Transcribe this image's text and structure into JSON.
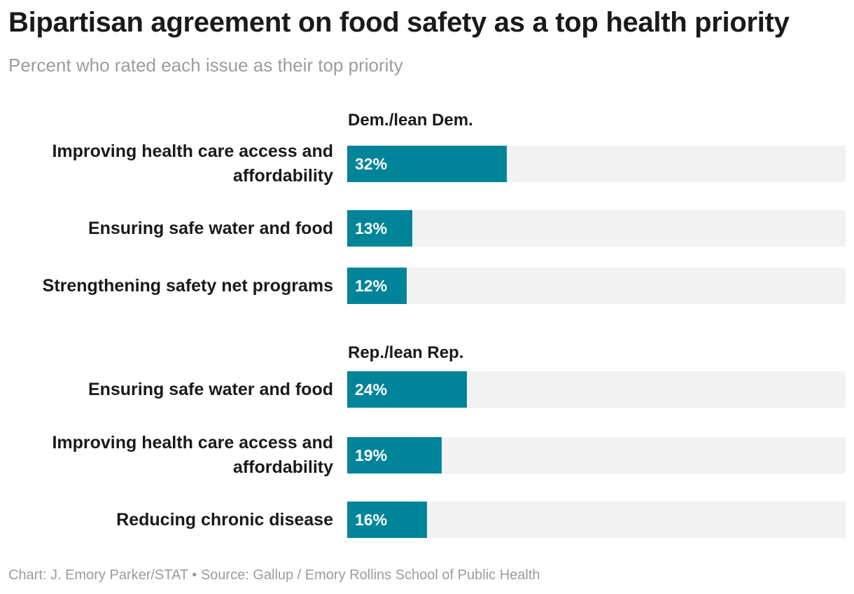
{
  "title": "Bipartisan agreement on food safety as a top health priority",
  "subtitle": "Percent who rated each issue as their top priority",
  "footer": "Chart: J. Emory Parker/STAT • Source: Gallup / Emory Rollins School of Public Health",
  "colors": {
    "bar": "#00849a",
    "track": "#f2f2f2"
  },
  "chart_data": {
    "type": "bar",
    "orientation": "horizontal",
    "xlim": [
      0,
      100
    ],
    "unit": "%",
    "groups": [
      {
        "name": "Dem./lean Dem.",
        "categories": [
          "Improving health care access and affordability",
          "Ensuring safe water and food",
          "Strengthening safety net programs"
        ],
        "values": [
          32,
          13,
          12
        ],
        "labels": [
          "32%",
          "13%",
          "12%"
        ]
      },
      {
        "name": "Rep./lean Rep.",
        "categories": [
          "Ensuring safe water and food",
          "Improving health care access and affordability",
          "Reducing chronic disease"
        ],
        "values": [
          24,
          19,
          16
        ],
        "labels": [
          "24%",
          "19%",
          "16%"
        ]
      }
    ]
  }
}
